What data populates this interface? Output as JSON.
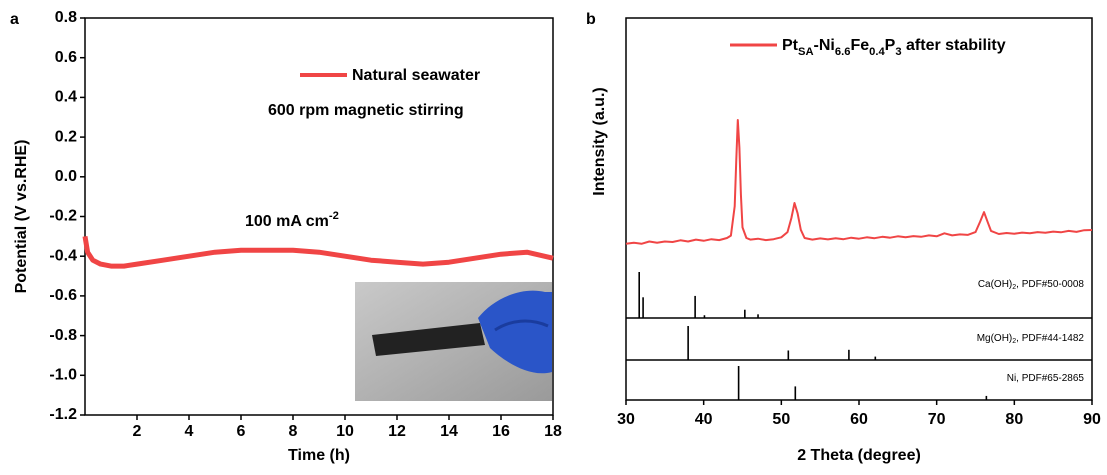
{
  "chart_data": [
    {
      "type": "line",
      "panel_label": "a",
      "xlabel": "Time (h)",
      "ylabel": "Potential (V vs.RHE)",
      "xlim": [
        0,
        18
      ],
      "xticks": [
        2,
        4,
        6,
        8,
        10,
        12,
        14,
        16,
        18
      ],
      "ylim": [
        -1.2,
        0.8
      ],
      "yticks": [
        0.8,
        0.6,
        0.4,
        0.2,
        {
          "value": 0,
          "label": "0.0"
        },
        -0.2,
        -0.4,
        -0.6,
        -0.8,
        {
          "value": -1,
          "label": "-1.0"
        },
        -1.2
      ],
      "x": [
        0,
        0.1,
        0.3,
        0.6,
        1,
        1.5,
        2,
        3,
        4,
        5,
        6,
        7,
        8,
        9,
        10,
        11,
        12,
        13,
        14,
        15,
        16,
        17,
        18
      ],
      "series": [
        {
          "name": "Natural seawater",
          "color": "#f04545",
          "values": [
            -0.3,
            -0.38,
            -0.42,
            -0.44,
            -0.45,
            -0.45,
            -0.44,
            -0.42,
            -0.4,
            -0.38,
            -0.37,
            -0.37,
            -0.37,
            -0.38,
            -0.4,
            -0.42,
            -0.43,
            -0.44,
            -0.43,
            -0.41,
            -0.39,
            -0.38,
            -0.41
          ]
        }
      ],
      "annotations": [
        {
          "text": "600 rpm magnetic stirring"
        },
        {
          "text": "100 mA cm",
          "sup": "-2"
        }
      ]
    },
    {
      "type": "line",
      "panel_label": "b",
      "xlabel": "2 Theta (degree)",
      "ylabel": "Intensity (a.u.)",
      "xlim": [
        30,
        90
      ],
      "xticks": [
        30,
        40,
        50,
        60,
        70,
        80,
        90
      ],
      "ylim": [
        0,
        100
      ],
      "x": [
        30,
        31,
        32,
        33,
        34,
        35,
        36,
        37,
        38,
        39,
        40,
        41,
        42,
        43,
        43.5,
        44,
        44.2,
        44.4,
        44.6,
        44.8,
        45,
        45.5,
        46,
        47,
        48,
        49,
        50,
        50.8,
        51.3,
        51.7,
        52.1,
        52.5,
        53,
        54,
        55,
        56,
        57,
        58,
        59,
        60,
        61,
        62,
        63,
        64,
        65,
        66,
        67,
        68,
        69,
        70,
        71,
        72,
        73,
        74,
        75,
        75.6,
        76.1,
        76.6,
        77,
        78,
        79,
        80,
        81,
        82,
        83,
        84,
        85,
        86,
        87,
        88,
        89,
        90
      ],
      "series": [
        {
          "name_parts": [
            {
              "text": "Pt"
            },
            {
              "text": "SA",
              "sub": true
            },
            {
              "text": "-Ni"
            },
            {
              "text": "6.6",
              "sub": true
            },
            {
              "text": "Fe"
            },
            {
              "text": "0.4",
              "sub": true
            },
            {
              "text": "P"
            },
            {
              "text": "3",
              "sub": true
            },
            {
              "text": " after stability"
            }
          ],
          "color": "#f04545",
          "values": [
            9,
            9.5,
            9,
            10,
            9.5,
            10,
            9.8,
            10.5,
            10,
            10.8,
            10.3,
            11,
            10.6,
            11.5,
            12.5,
            25,
            45,
            61.7,
            50,
            30,
            16,
            11.5,
            10.8,
            11.2,
            10.6,
            11,
            11.8,
            14,
            20,
            26.4,
            22,
            15,
            11.5,
            10.8,
            11.3,
            10.9,
            11.4,
            11,
            11.6,
            11.2,
            11.8,
            11.4,
            12,
            11.6,
            12.2,
            11.8,
            12.3,
            12,
            12.6,
            12.2,
            13.5,
            12.6,
            13,
            12.8,
            14,
            18.5,
            22.5,
            18,
            14.5,
            13.2,
            13.6,
            13.3,
            13.8,
            13.5,
            14,
            13.7,
            14.2,
            13.9,
            14.5,
            14.1,
            14.8,
            14.9
          ]
        }
      ]
    },
    {
      "type": "stick",
      "label_parts": [
        {
          "text": "Ca(OH)"
        },
        {
          "text": "2",
          "sub": true
        },
        {
          "text": ", PDF#50-0008"
        }
      ],
      "color": "#000000",
      "xlim": [
        30,
        90
      ],
      "ylim": [
        0,
        100
      ],
      "x": [
        31.7,
        32.2,
        38.9,
        40.1,
        45.3,
        47.0
      ],
      "values": [
        100,
        45,
        48,
        6,
        18,
        8
      ]
    },
    {
      "type": "stick",
      "label_parts": [
        {
          "text": "Mg(OH)"
        },
        {
          "text": "2",
          "sub": true
        },
        {
          "text": ", PDF#44-1482"
        }
      ],
      "color": "#000000",
      "xlim": [
        30,
        90
      ],
      "ylim": [
        0,
        100
      ],
      "x": [
        38.0,
        50.9,
        58.7,
        62.1
      ],
      "values": [
        100,
        28,
        30,
        10
      ]
    },
    {
      "type": "stick",
      "label_parts": [
        {
          "text": "Ni, PDF#65-2865"
        }
      ],
      "color": "#000000",
      "xlim": [
        30,
        90
      ],
      "ylim": [
        0,
        100
      ],
      "x": [
        44.5,
        51.8,
        76.4
      ],
      "values": [
        100,
        40,
        12
      ]
    }
  ]
}
